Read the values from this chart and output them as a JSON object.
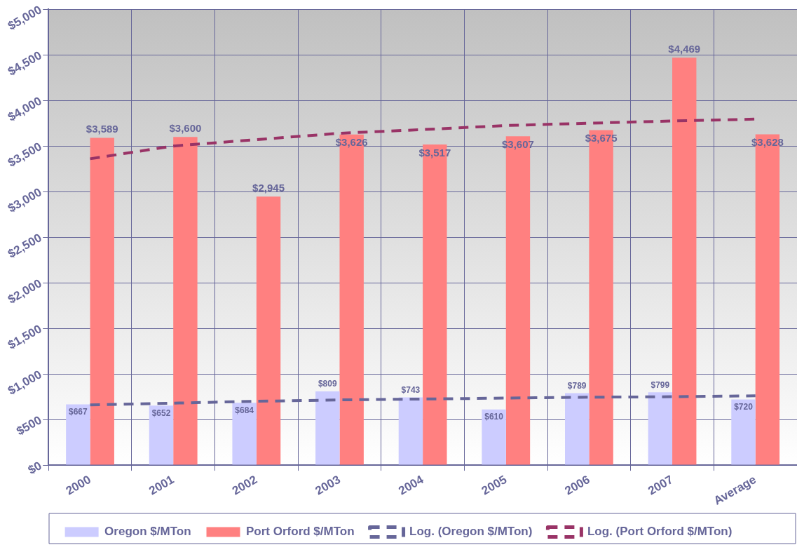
{
  "chart_data": {
    "type": "bar",
    "categories": [
      "2000",
      "2001",
      "2002",
      "2003",
      "2004",
      "2005",
      "2006",
      "2007",
      "Average"
    ],
    "series": [
      {
        "name": "Oregon $/MTon",
        "color": "#ccccff",
        "values": [
          667,
          652,
          684,
          809,
          743,
          610,
          789,
          799,
          720
        ],
        "value_labels": [
          "$667",
          "$652",
          "$684",
          "$809",
          "$743",
          "$610",
          "$789",
          "$799",
          "$720"
        ]
      },
      {
        "name": "Port Orford $/MTon",
        "color": "#ff8080",
        "values": [
          3589,
          3600,
          2945,
          3626,
          3517,
          3607,
          3675,
          4469,
          3628
        ],
        "value_labels": [
          "$3,589",
          "$3,600",
          "$2,945",
          "$3,626",
          "$3,517",
          "$3,607",
          "$3,675",
          "$4,469",
          "$3,628"
        ]
      },
      {
        "name": "Log. (Oregon $/MTon)",
        "type": "line",
        "color": "#666699",
        "line_style": "dashed",
        "values": [
          660,
          680,
          700,
          715,
          725,
          735,
          745,
          750,
          760
        ]
      },
      {
        "name": "Log. (Port Orford $/MTon)",
        "type": "line",
        "color": "#993366",
        "line_style": "dashed",
        "values": [
          3360,
          3500,
          3570,
          3640,
          3680,
          3725,
          3750,
          3775,
          3795
        ]
      }
    ],
    "ylim": [
      0,
      5000
    ],
    "yticks": [
      {
        "value": 0,
        "label": "$0"
      },
      {
        "value": 500,
        "label": "$500"
      },
      {
        "value": 1000,
        "label": "$1,000"
      },
      {
        "value": 1500,
        "label": "$1,500"
      },
      {
        "value": 2000,
        "label": "$2,000"
      },
      {
        "value": 2500,
        "label": "$2,500"
      },
      {
        "value": 3000,
        "label": "$3,000"
      },
      {
        "value": 3500,
        "label": "$3,500"
      },
      {
        "value": 4000,
        "label": "$4,000"
      },
      {
        "value": 4500,
        "label": "$4,500"
      },
      {
        "value": 5000,
        "label": "$5,000"
      }
    ],
    "grid": true,
    "legend": "bottom",
    "marker": "none"
  }
}
